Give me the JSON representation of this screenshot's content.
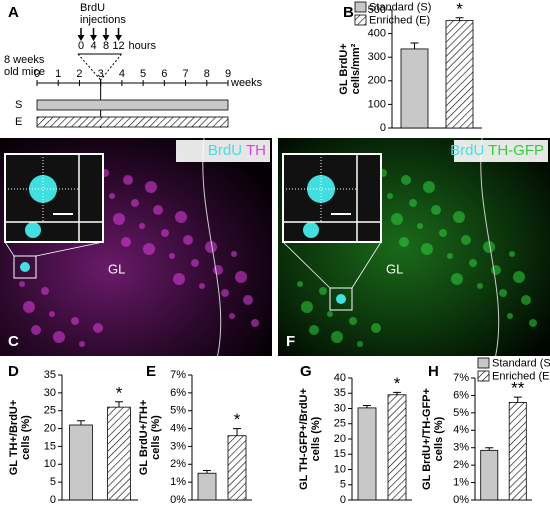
{
  "timeline": {
    "panel": "A",
    "injection_label": [
      "BrdU",
      "injections"
    ],
    "hours": [
      0,
      4,
      8,
      12
    ],
    "hours_unit": "hours",
    "mice_label": [
      "8 weeks",
      "old mice"
    ],
    "weeks": [
      0,
      1,
      2,
      3,
      4,
      5,
      6,
      7,
      8,
      9
    ],
    "weeks_unit": "weeks",
    "groups": [
      "S",
      "E"
    ]
  },
  "legend": [
    {
      "label": "Standard (S)",
      "color": "#c8c8c8",
      "hatch": false
    },
    {
      "label": "Enriched (E)",
      "color": "#ffffff",
      "hatch": true
    }
  ],
  "images": [
    {
      "panel": "C",
      "label_1": "BrdU",
      "label_2": "TH",
      "color_1": "#40e0e0",
      "color_2": "#e040e0",
      "region": "GL"
    },
    {
      "panel": "F",
      "label_1": "BrdU",
      "label_2": "TH-GFP",
      "color_1": "#40e0e0",
      "color_2": "#30d040",
      "region": "GL"
    }
  ],
  "chart_data": [
    {
      "type": "bar",
      "panel": "B",
      "ylabel": [
        "GL BrdU+",
        "cells/mm²"
      ],
      "values": [
        335,
        455
      ],
      "errors": [
        25,
        12
      ],
      "significance": "*",
      "ylim": [
        0,
        500
      ],
      "yticks": [
        0,
        100,
        200,
        300,
        400,
        500
      ]
    },
    {
      "type": "bar",
      "panel": "D",
      "ylabel": [
        "GL TH+/BrdU+",
        "cells (%)"
      ],
      "values": [
        21,
        26
      ],
      "errors": [
        1.2,
        1.5
      ],
      "significance": "*",
      "ylim": [
        0,
        35
      ],
      "yticks": [
        0,
        5,
        10,
        15,
        20,
        25,
        30,
        35
      ]
    },
    {
      "type": "bar",
      "panel": "E",
      "ylabel": [
        "GL BrdU+/TH+",
        "cells (%)"
      ],
      "values": [
        1.5,
        3.6
      ],
      "errors": [
        0.15,
        0.4
      ],
      "significance": "*",
      "ylim": [
        0,
        7
      ],
      "yticks": [
        {
          "value": 0,
          "label": "0%"
        },
        {
          "value": 1,
          "label": "1%"
        },
        {
          "value": 2,
          "label": "2%"
        },
        {
          "value": 3,
          "label": "3%"
        },
        {
          "value": 4,
          "label": "4%"
        },
        {
          "value": 5,
          "label": "5%"
        },
        {
          "value": 6,
          "label": "6%"
        },
        {
          "value": 7,
          "label": "7%"
        }
      ]
    },
    {
      "type": "bar",
      "panel": "G",
      "ylabel": [
        "GL TH-GFP+/BrdU+",
        "cells (%)"
      ],
      "values": [
        30.2,
        34.5
      ],
      "errors": [
        0.8,
        0.8
      ],
      "significance": "*",
      "ylim": [
        0,
        40
      ],
      "yticks": [
        0,
        5,
        10,
        15,
        20,
        25,
        30,
        35,
        40
      ]
    },
    {
      "type": "bar",
      "panel": "H",
      "ylabel": [
        "GL BrdU+/TH-GFP+",
        "cells (%)"
      ],
      "values": [
        2.85,
        5.6
      ],
      "errors": [
        0.15,
        0.3
      ],
      "significance": "**",
      "ylim": [
        0,
        7
      ],
      "yticks": [
        {
          "value": 0,
          "label": "0%"
        },
        {
          "value": 1,
          "label": "1%"
        },
        {
          "value": 2,
          "label": "2%"
        },
        {
          "value": 3,
          "label": "3%"
        },
        {
          "value": 4,
          "label": "4%"
        },
        {
          "value": 5,
          "label": "5%"
        },
        {
          "value": 6,
          "label": "6%"
        },
        {
          "value": 7,
          "label": "7%"
        }
      ]
    }
  ]
}
